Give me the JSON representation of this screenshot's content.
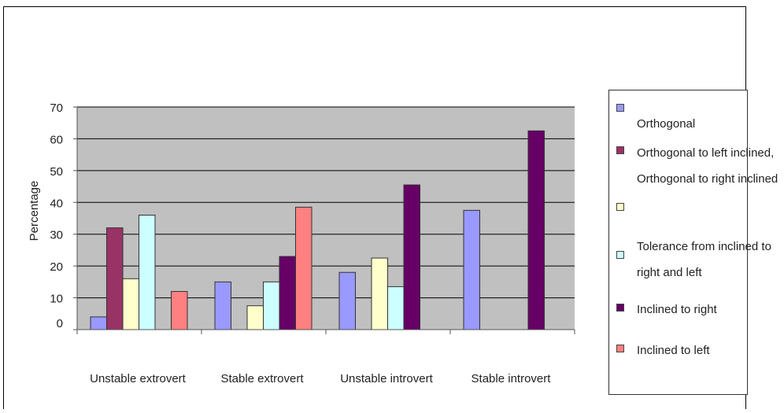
{
  "chart_data": {
    "type": "bar",
    "categories": [
      "Unstable extrovert",
      "Stable extrovert",
      "Unstable introvert",
      "Stable introvert"
    ],
    "ylabel": "Percentage",
    "xlabel": "",
    "ylim": [
      0,
      70
    ],
    "yticks": [
      0,
      10,
      20,
      30,
      40,
      50,
      60,
      70
    ],
    "grid": true,
    "legend_position": "right",
    "series": [
      {
        "name": "Orthogonal",
        "color": "#9999ff",
        "values": [
          4,
          15,
          18,
          37.5
        ]
      },
      {
        "name": "Orthogonal to left inclined, Orthogonal to right inclined",
        "color": "#993366",
        "values": [
          32,
          0,
          0,
          0
        ]
      },
      {
        "name": "Tolerance from inclined to right and left",
        "color": "#ffffcc",
        "values": [
          16,
          7.5,
          22.5,
          0
        ]
      },
      {
        "name": "",
        "color": "#ccffff",
        "values": [
          36,
          15,
          13.5,
          0
        ]
      },
      {
        "name": "Inclined to right",
        "color": "#660066",
        "values": [
          0,
          23,
          45.5,
          62.5
        ]
      },
      {
        "name": "Inclined to left",
        "color": "#ff8080",
        "values": [
          12,
          38.5,
          0,
          0
        ]
      }
    ],
    "plot_background": "#c0c0c0"
  }
}
